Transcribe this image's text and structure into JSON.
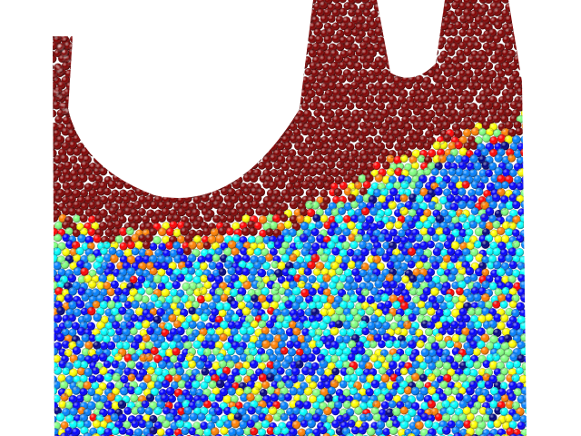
{
  "image": {
    "kind": "particle-simulation-render",
    "background": "#ffffff",
    "colormap": "jet",
    "colormap_stops": [
      "#00007f",
      "#0000ff",
      "#007fff",
      "#00ffff",
      "#7fff7f",
      "#ffff00",
      "#ff7f00",
      "#ff0000",
      "#7f0000"
    ],
    "dominant_colors": {
      "top_layer": "#7f0000",
      "interface": "#ff7f00",
      "bulk": "#0f6fff",
      "mixed_highlights": "#00ffff"
    },
    "visible_text": []
  }
}
